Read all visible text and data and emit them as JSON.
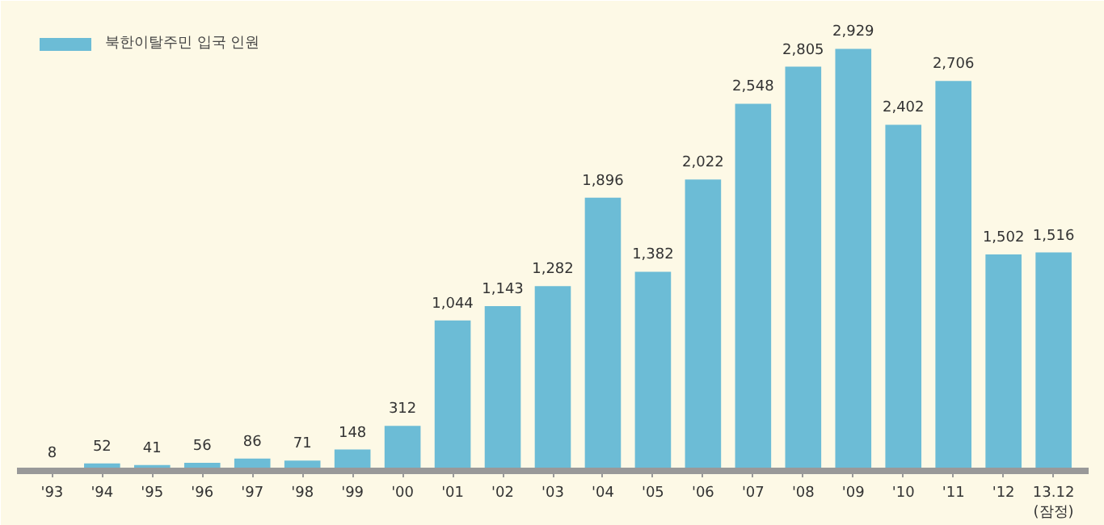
{
  "chart_data": {
    "type": "bar",
    "categories": [
      "'93",
      "'94",
      "'95",
      "'96",
      "'97",
      "'98",
      "'99",
      "'00",
      "'01",
      "'02",
      "'03",
      "'04",
      "'05",
      "'06",
      "'07",
      "'08",
      "'09",
      "'10",
      "'11",
      "'12",
      "13.12\n(잠정)"
    ],
    "series": [
      {
        "name": "북한이탈주민 입국 인원",
        "color": "#6cbcd6",
        "values": [
          8,
          52,
          41,
          56,
          86,
          71,
          148,
          312,
          1044,
          1143,
          1282,
          1896,
          1382,
          2022,
          2548,
          2805,
          2929,
          2402,
          2706,
          1502,
          1516
        ],
        "value_labels": [
          "8",
          "52",
          "41",
          "56",
          "86",
          "71",
          "148",
          "312",
          "1,044",
          "1,143",
          "1,282",
          "1,896",
          "1,382",
          "2,022",
          "2,548",
          "2,805",
          "2,929",
          "2,402",
          "2,706",
          "1,502",
          "1,516"
        ]
      }
    ],
    "ylim": [
      0,
      3150
    ],
    "tick_labels": "x",
    "legend": "top left",
    "grid": false
  }
}
